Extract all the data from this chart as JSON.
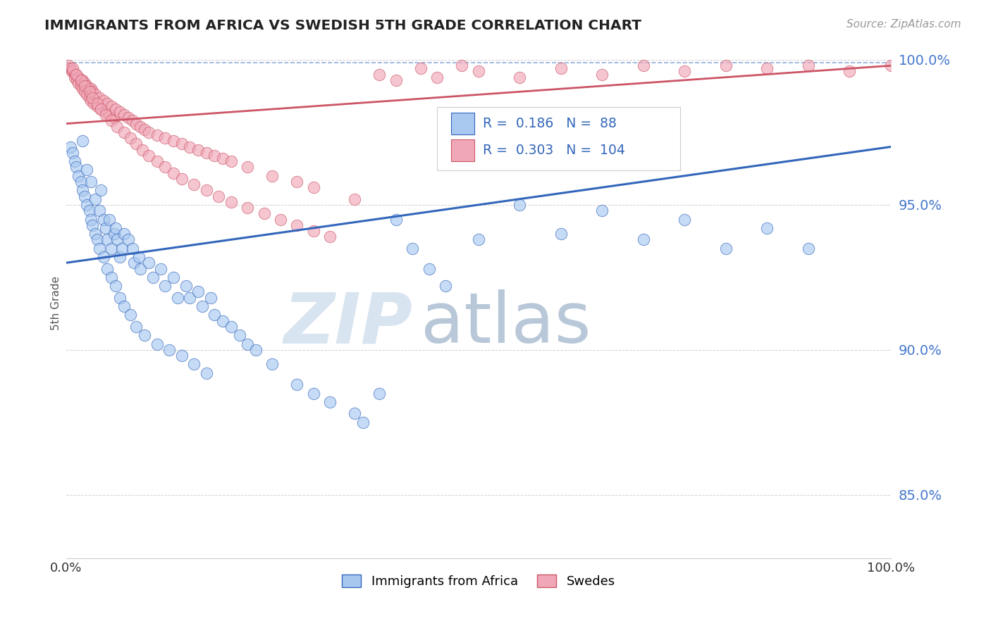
{
  "title": "IMMIGRANTS FROM AFRICA VS SWEDISH 5TH GRADE CORRELATION CHART",
  "source_text": "Source: ZipAtlas.com",
  "ylabel": "5th Grade",
  "xlim": [
    0.0,
    1.0
  ],
  "ylim": [
    0.828,
    1.004
  ],
  "yticks": [
    0.85,
    0.9,
    0.95,
    1.0
  ],
  "ytick_labels": [
    "85.0%",
    "90.0%",
    "95.0%",
    "100.0%"
  ],
  "legend_labels": [
    "Immigrants from Africa",
    "Swedes"
  ],
  "series1_color": "#a8c8f0",
  "series2_color": "#f0a8b8",
  "trendline1_color": "#3366bb",
  "trendline2_color": "#cc5566",
  "R1": 0.186,
  "N1": 88,
  "R2": 0.303,
  "N2": 104,
  "background_color": "#ffffff",
  "trendline1_x0": 0.0,
  "trendline1_y0": 0.93,
  "trendline1_x1": 1.0,
  "trendline1_y1": 0.97,
  "trendline2_x0": 0.0,
  "trendline2_y0": 0.978,
  "trendline2_x1": 1.0,
  "trendline2_y1": 0.998,
  "dashline_y": 0.999,
  "series1_x": [
    0.005,
    0.008,
    0.01,
    0.012,
    0.015,
    0.018,
    0.02,
    0.02,
    0.022,
    0.025,
    0.025,
    0.028,
    0.03,
    0.03,
    0.032,
    0.035,
    0.035,
    0.038,
    0.04,
    0.04,
    0.042,
    0.045,
    0.045,
    0.048,
    0.05,
    0.05,
    0.052,
    0.055,
    0.055,
    0.058,
    0.06,
    0.06,
    0.062,
    0.065,
    0.065,
    0.068,
    0.07,
    0.07,
    0.075,
    0.078,
    0.08,
    0.082,
    0.085,
    0.088,
    0.09,
    0.095,
    0.1,
    0.105,
    0.11,
    0.115,
    0.12,
    0.125,
    0.13,
    0.135,
    0.14,
    0.145,
    0.15,
    0.155,
    0.16,
    0.165,
    0.17,
    0.175,
    0.18,
    0.19,
    0.2,
    0.21,
    0.22,
    0.23,
    0.25,
    0.28,
    0.3,
    0.32,
    0.35,
    0.36,
    0.38,
    0.4,
    0.42,
    0.44,
    0.46,
    0.5,
    0.55,
    0.6,
    0.65,
    0.7,
    0.75,
    0.8,
    0.85,
    0.9
  ],
  "series1_y": [
    0.97,
    0.968,
    0.965,
    0.963,
    0.96,
    0.958,
    0.972,
    0.955,
    0.953,
    0.962,
    0.95,
    0.948,
    0.958,
    0.945,
    0.943,
    0.952,
    0.94,
    0.938,
    0.948,
    0.935,
    0.955,
    0.945,
    0.932,
    0.942,
    0.938,
    0.928,
    0.945,
    0.935,
    0.925,
    0.94,
    0.942,
    0.922,
    0.938,
    0.932,
    0.918,
    0.935,
    0.94,
    0.915,
    0.938,
    0.912,
    0.935,
    0.93,
    0.908,
    0.932,
    0.928,
    0.905,
    0.93,
    0.925,
    0.902,
    0.928,
    0.922,
    0.9,
    0.925,
    0.918,
    0.898,
    0.922,
    0.918,
    0.895,
    0.92,
    0.915,
    0.892,
    0.918,
    0.912,
    0.91,
    0.908,
    0.905,
    0.902,
    0.9,
    0.895,
    0.888,
    0.885,
    0.882,
    0.878,
    0.875,
    0.885,
    0.945,
    0.935,
    0.928,
    0.922,
    0.938,
    0.95,
    0.94,
    0.948,
    0.938,
    0.945,
    0.935,
    0.942,
    0.935
  ],
  "series2_x": [
    0.003,
    0.005,
    0.007,
    0.008,
    0.01,
    0.01,
    0.012,
    0.013,
    0.015,
    0.015,
    0.018,
    0.018,
    0.02,
    0.02,
    0.022,
    0.022,
    0.025,
    0.025,
    0.028,
    0.028,
    0.03,
    0.03,
    0.032,
    0.033,
    0.035,
    0.038,
    0.04,
    0.042,
    0.045,
    0.048,
    0.05,
    0.052,
    0.055,
    0.058,
    0.06,
    0.065,
    0.07,
    0.075,
    0.08,
    0.085,
    0.09,
    0.095,
    0.1,
    0.11,
    0.12,
    0.13,
    0.14,
    0.15,
    0.16,
    0.17,
    0.18,
    0.19,
    0.2,
    0.22,
    0.25,
    0.28,
    0.3,
    0.35,
    0.38,
    0.4,
    0.43,
    0.45,
    0.48,
    0.5,
    0.55,
    0.6,
    0.65,
    0.7,
    0.75,
    0.8,
    0.85,
    0.9,
    0.95,
    1.0,
    0.008,
    0.012,
    0.018,
    0.022,
    0.028,
    0.032,
    0.038,
    0.042,
    0.048,
    0.055,
    0.062,
    0.07,
    0.078,
    0.085,
    0.092,
    0.1,
    0.11,
    0.12,
    0.13,
    0.14,
    0.155,
    0.17,
    0.185,
    0.2,
    0.22,
    0.24,
    0.26,
    0.28,
    0.3,
    0.32
  ],
  "series2_y": [
    0.998,
    0.997,
    0.996,
    0.996,
    0.995,
    0.994,
    0.995,
    0.993,
    0.994,
    0.992,
    0.993,
    0.991,
    0.993,
    0.99,
    0.992,
    0.989,
    0.991,
    0.988,
    0.99,
    0.987,
    0.99,
    0.986,
    0.989,
    0.985,
    0.988,
    0.984,
    0.987,
    0.983,
    0.986,
    0.982,
    0.985,
    0.981,
    0.984,
    0.98,
    0.983,
    0.982,
    0.981,
    0.98,
    0.979,
    0.978,
    0.977,
    0.976,
    0.975,
    0.974,
    0.973,
    0.972,
    0.971,
    0.97,
    0.969,
    0.968,
    0.967,
    0.966,
    0.965,
    0.963,
    0.96,
    0.958,
    0.956,
    0.952,
    0.995,
    0.993,
    0.997,
    0.994,
    0.998,
    0.996,
    0.994,
    0.997,
    0.995,
    0.998,
    0.996,
    0.998,
    0.997,
    0.998,
    0.996,
    0.998,
    0.997,
    0.995,
    0.993,
    0.991,
    0.989,
    0.987,
    0.985,
    0.983,
    0.981,
    0.979,
    0.977,
    0.975,
    0.973,
    0.971,
    0.969,
    0.967,
    0.965,
    0.963,
    0.961,
    0.959,
    0.957,
    0.955,
    0.953,
    0.951,
    0.949,
    0.947,
    0.945,
    0.943,
    0.941,
    0.939
  ]
}
